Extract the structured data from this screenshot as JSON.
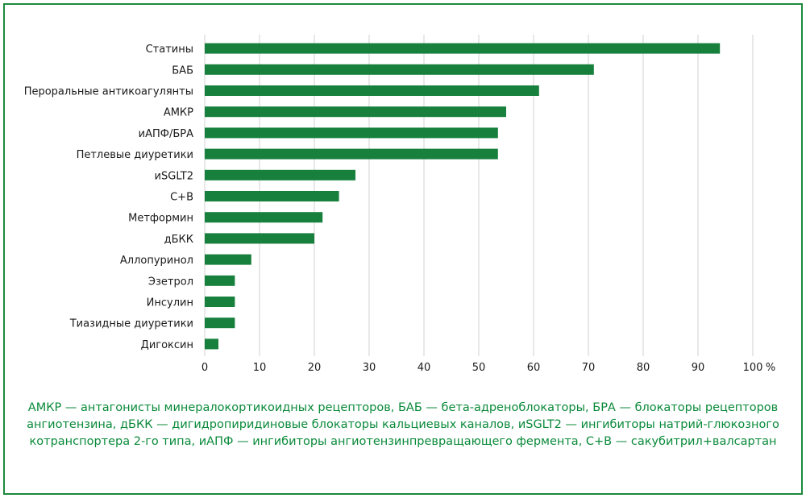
{
  "chart_data": {
    "type": "bar",
    "orientation": "horizontal",
    "categories": [
      "Статины",
      "БАБ",
      "Пероральные антикоагулянты",
      "АМКР",
      "иАПФ/БРА",
      "Петлевые диуретики",
      "иSGLT2",
      "С+В",
      "Метформин",
      "дБКК",
      "Аллопуринол",
      "Эзетрол",
      "Инсулин",
      "Тиазидные диуретики",
      "Дигоксин"
    ],
    "values": [
      94,
      71,
      61,
      55,
      53.5,
      53.5,
      27.5,
      24.5,
      21.5,
      20,
      8.5,
      5.5,
      5.5,
      5.5,
      2.5
    ],
    "xlim": [
      0,
      100
    ],
    "xticks": [
      0,
      10,
      20,
      30,
      40,
      50,
      60,
      70,
      80,
      90,
      100
    ],
    "xunit": "%",
    "grid": true,
    "bar_color": "#16803c"
  },
  "footnote": "АМКР — антагонисты минералокортикоидных рецепторов, БАБ — бета-адреноблокаторы, БРА — блокаторы рецепторов ангиотензина, дБКК — дигидропиридиновые блокаторы кальциевых каналов, иSGLT2 — ингибиторы натрий-глюкозного котранспортера 2-го типа, иАПФ — ингибиторы ангиотензинпревращающего фермента, С+В — сакубитрил+валсартан"
}
